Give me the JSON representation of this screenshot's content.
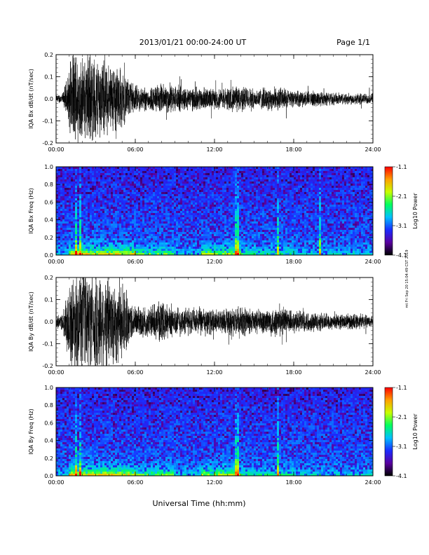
{
  "header": {
    "title": "2013/01/21  00:00-24:00 UT",
    "page": "Page 1/1"
  },
  "side_note": "mt Fri Sep 20 15:04:49 CST 2019",
  "xlabel": "Universal Time (hh:mm)",
  "colors": {
    "trace": "#000000",
    "colorbar": [
      "#000000",
      "#5a00a0",
      "#1a2cff",
      "#00c0ff",
      "#00ff60",
      "#c8ff00",
      "#ffa000",
      "#ff0000"
    ]
  },
  "chart_data": [
    {
      "id": "bx-wave",
      "type": "line",
      "ylabel": "IQA Bx dB/dt (nT/sec)",
      "x_ticks": [
        "00:00",
        "06:00",
        "12:00",
        "18:00",
        "24:00"
      ],
      "xlim_hours": [
        0,
        24
      ],
      "y_ticks": [
        "0.2",
        "0.1",
        "0.0",
        "-0.1",
        "-0.2"
      ],
      "y_tick_values": [
        0.2,
        0.1,
        0.0,
        -0.1,
        -0.2
      ],
      "ylim": [
        -0.2,
        0.2
      ],
      "amplitude_envelope": {
        "x_hours": [
          0,
          0.5,
          1.0,
          1.3,
          1.6,
          2.0,
          2.5,
          3.0,
          3.5,
          4.0,
          4.5,
          5.0,
          5.5,
          6.0,
          7.0,
          8.0,
          9.0,
          10.0,
          11.0,
          12.0,
          13.0,
          14.0,
          15.0,
          16.0,
          17.0,
          18.0,
          19.0,
          20.0,
          21.0,
          22.0,
          23.0,
          24.0
        ],
        "half_amplitude": [
          0.02,
          0.03,
          0.15,
          0.25,
          0.25,
          0.2,
          0.25,
          0.22,
          0.2,
          0.18,
          0.2,
          0.15,
          0.1,
          0.07,
          0.06,
          0.08,
          0.07,
          0.06,
          0.06,
          0.05,
          0.06,
          0.07,
          0.05,
          0.06,
          0.06,
          0.04,
          0.04,
          0.04,
          0.03,
          0.03,
          0.03,
          0.025
        ]
      }
    },
    {
      "id": "bx-spec",
      "type": "heatmap",
      "ylabel": "IQA Bx Freq (Hz)",
      "x_ticks": [
        "00:00",
        "06:00",
        "12:00",
        "18:00",
        "24:00"
      ],
      "xlim_hours": [
        0,
        24
      ],
      "y_ticks": [
        "1.0",
        "0.8",
        "0.6",
        "0.4",
        "0.2",
        "0.0"
      ],
      "y_tick_values": [
        1.0,
        0.8,
        0.6,
        0.4,
        0.2,
        0.0
      ],
      "ylim": [
        0,
        1.0
      ],
      "colorbar_label": "Log10 Power",
      "colorbar_ticks": [
        "-1.1",
        "-2.1",
        "-3.1",
        "-4.1"
      ],
      "colorbar_tick_values": [
        -1.1,
        -2.1,
        -3.1,
        -4.1
      ],
      "vmin": -4.1,
      "vmax": -1.1,
      "vertical_streaks_hours": [
        1.5,
        1.8,
        13.7,
        16.8,
        20.0
      ]
    },
    {
      "id": "by-wave",
      "type": "line",
      "ylabel": "IQA By dB/dt (nT/sec)",
      "x_ticks": [
        "00:00",
        "06:00",
        "12:00",
        "18:00",
        "24:00"
      ],
      "xlim_hours": [
        0,
        24
      ],
      "y_ticks": [
        "0.2",
        "0.1",
        "0.0",
        "-0.1",
        "-0.2"
      ],
      "y_tick_values": [
        0.2,
        0.1,
        0.0,
        -0.1,
        -0.2
      ],
      "ylim": [
        -0.2,
        0.2
      ],
      "amplitude_envelope": {
        "x_hours": [
          0,
          0.5,
          1.0,
          1.3,
          1.6,
          2.0,
          2.5,
          3.0,
          3.5,
          4.0,
          4.5,
          5.0,
          5.5,
          6.0,
          7.0,
          8.0,
          9.0,
          10.0,
          11.0,
          12.0,
          13.0,
          14.0,
          15.0,
          16.0,
          17.0,
          18.0,
          19.0,
          20.0,
          21.0,
          22.0,
          23.0,
          24.0
        ],
        "half_amplitude": [
          0.03,
          0.05,
          0.2,
          0.25,
          0.25,
          0.25,
          0.25,
          0.25,
          0.25,
          0.25,
          0.22,
          0.2,
          0.12,
          0.08,
          0.08,
          0.1,
          0.08,
          0.07,
          0.07,
          0.06,
          0.07,
          0.08,
          0.06,
          0.07,
          0.08,
          0.06,
          0.05,
          0.05,
          0.04,
          0.04,
          0.04,
          0.03
        ]
      }
    },
    {
      "id": "by-spec",
      "type": "heatmap",
      "ylabel": "IQA By Freq (Hz)",
      "x_ticks": [
        "00:00",
        "06:00",
        "12:00",
        "18:00",
        "24:00"
      ],
      "xlim_hours": [
        0,
        24
      ],
      "y_ticks": [
        "1.0",
        "0.8",
        "0.6",
        "0.4",
        "0.2",
        "0.0"
      ],
      "y_tick_values": [
        1.0,
        0.8,
        0.6,
        0.4,
        0.2,
        0.0
      ],
      "ylim": [
        0,
        1.0
      ],
      "colorbar_label": "Log10 Power",
      "colorbar_ticks": [
        "-1.1",
        "-2.1",
        "-3.1",
        "-4.1"
      ],
      "colorbar_tick_values": [
        -1.1,
        -2.1,
        -3.1,
        -4.1
      ],
      "vmin": -4.1,
      "vmax": -1.1,
      "vertical_streaks_hours": [
        1.5,
        1.8,
        13.7,
        16.8
      ]
    }
  ]
}
